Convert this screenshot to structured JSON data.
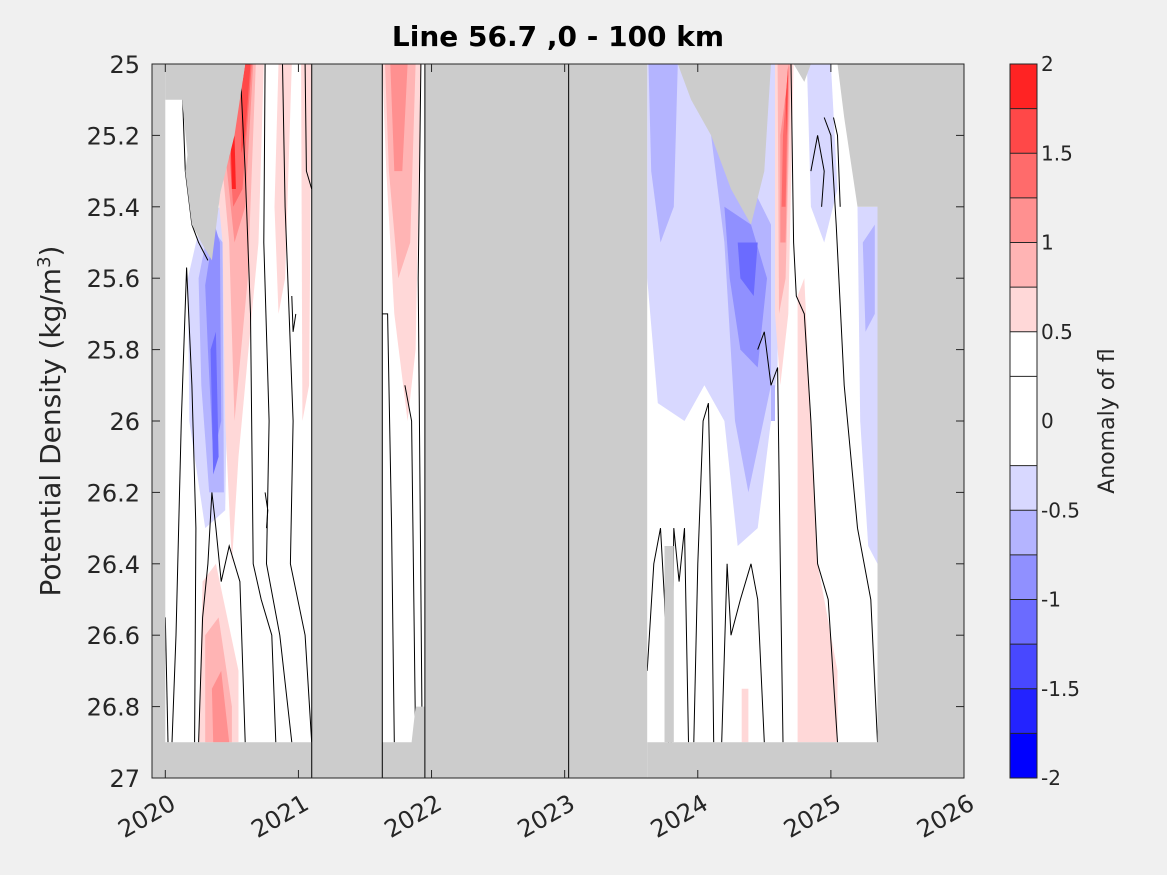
{
  "chart_data": {
    "type": "heatmap",
    "title": "Line 56.7 ,0 - 100 km",
    "ylabel": "Potential Density (kg/m",
    "ylabel_sup": "3",
    "ylabel_close": ")",
    "xlim": [
      2019.9,
      2026.0
    ],
    "ylim": [
      25.0,
      27.0
    ],
    "x_ticks": [
      2020,
      2021,
      2022,
      2023,
      2024,
      2025,
      2026
    ],
    "x_tick_labels": [
      "2020",
      "2021",
      "2022",
      "2023",
      "2024",
      "2025",
      "2026"
    ],
    "y_ticks": [
      25,
      25.2,
      25.4,
      25.6,
      25.8,
      26,
      26.2,
      26.4,
      26.6,
      26.8,
      27
    ],
    "y_tick_labels": [
      "25",
      "25.2",
      "25.4",
      "25.6",
      "25.8",
      "26",
      "26.2",
      "26.4",
      "26.6",
      "26.8",
      "27"
    ],
    "colorbar": {
      "label": "Anomaly of fl",
      "range": [
        -2,
        2
      ],
      "tick_values": [
        -2,
        -1.5,
        -1,
        -0.5,
        0,
        0.5,
        1,
        1.5,
        2
      ],
      "tick_labels": [
        "-2",
        "-1.5",
        "-1",
        "-0.5",
        "0",
        "0.5",
        "1",
        "1.5",
        "2"
      ],
      "levels": [
        -2,
        -1.75,
        -1.5,
        -1.25,
        -1,
        -0.75,
        -0.5,
        -0.25,
        0.25,
        0.5,
        0.75,
        1,
        1.25,
        1.5,
        1.75,
        2
      ],
      "colors": [
        "#0000ff",
        "#2323ff",
        "#4848ff",
        "#6b6bff",
        "#9090ff",
        "#b4b4ff",
        "#d8d8ff",
        "#ffffff",
        "#ffffff",
        "#ffd8d8",
        "#ffb4b4",
        "#ff9090",
        "#ff6b6b",
        "#ff4848",
        "#ff2323",
        "#ff0000"
      ]
    },
    "no_data_color": "#cccccc",
    "no_data_periods": [
      {
        "x": [
          2021.1,
          2021.63
        ]
      },
      {
        "x": [
          2021.95,
          2023.03
        ]
      }
    ],
    "grid": false
  }
}
